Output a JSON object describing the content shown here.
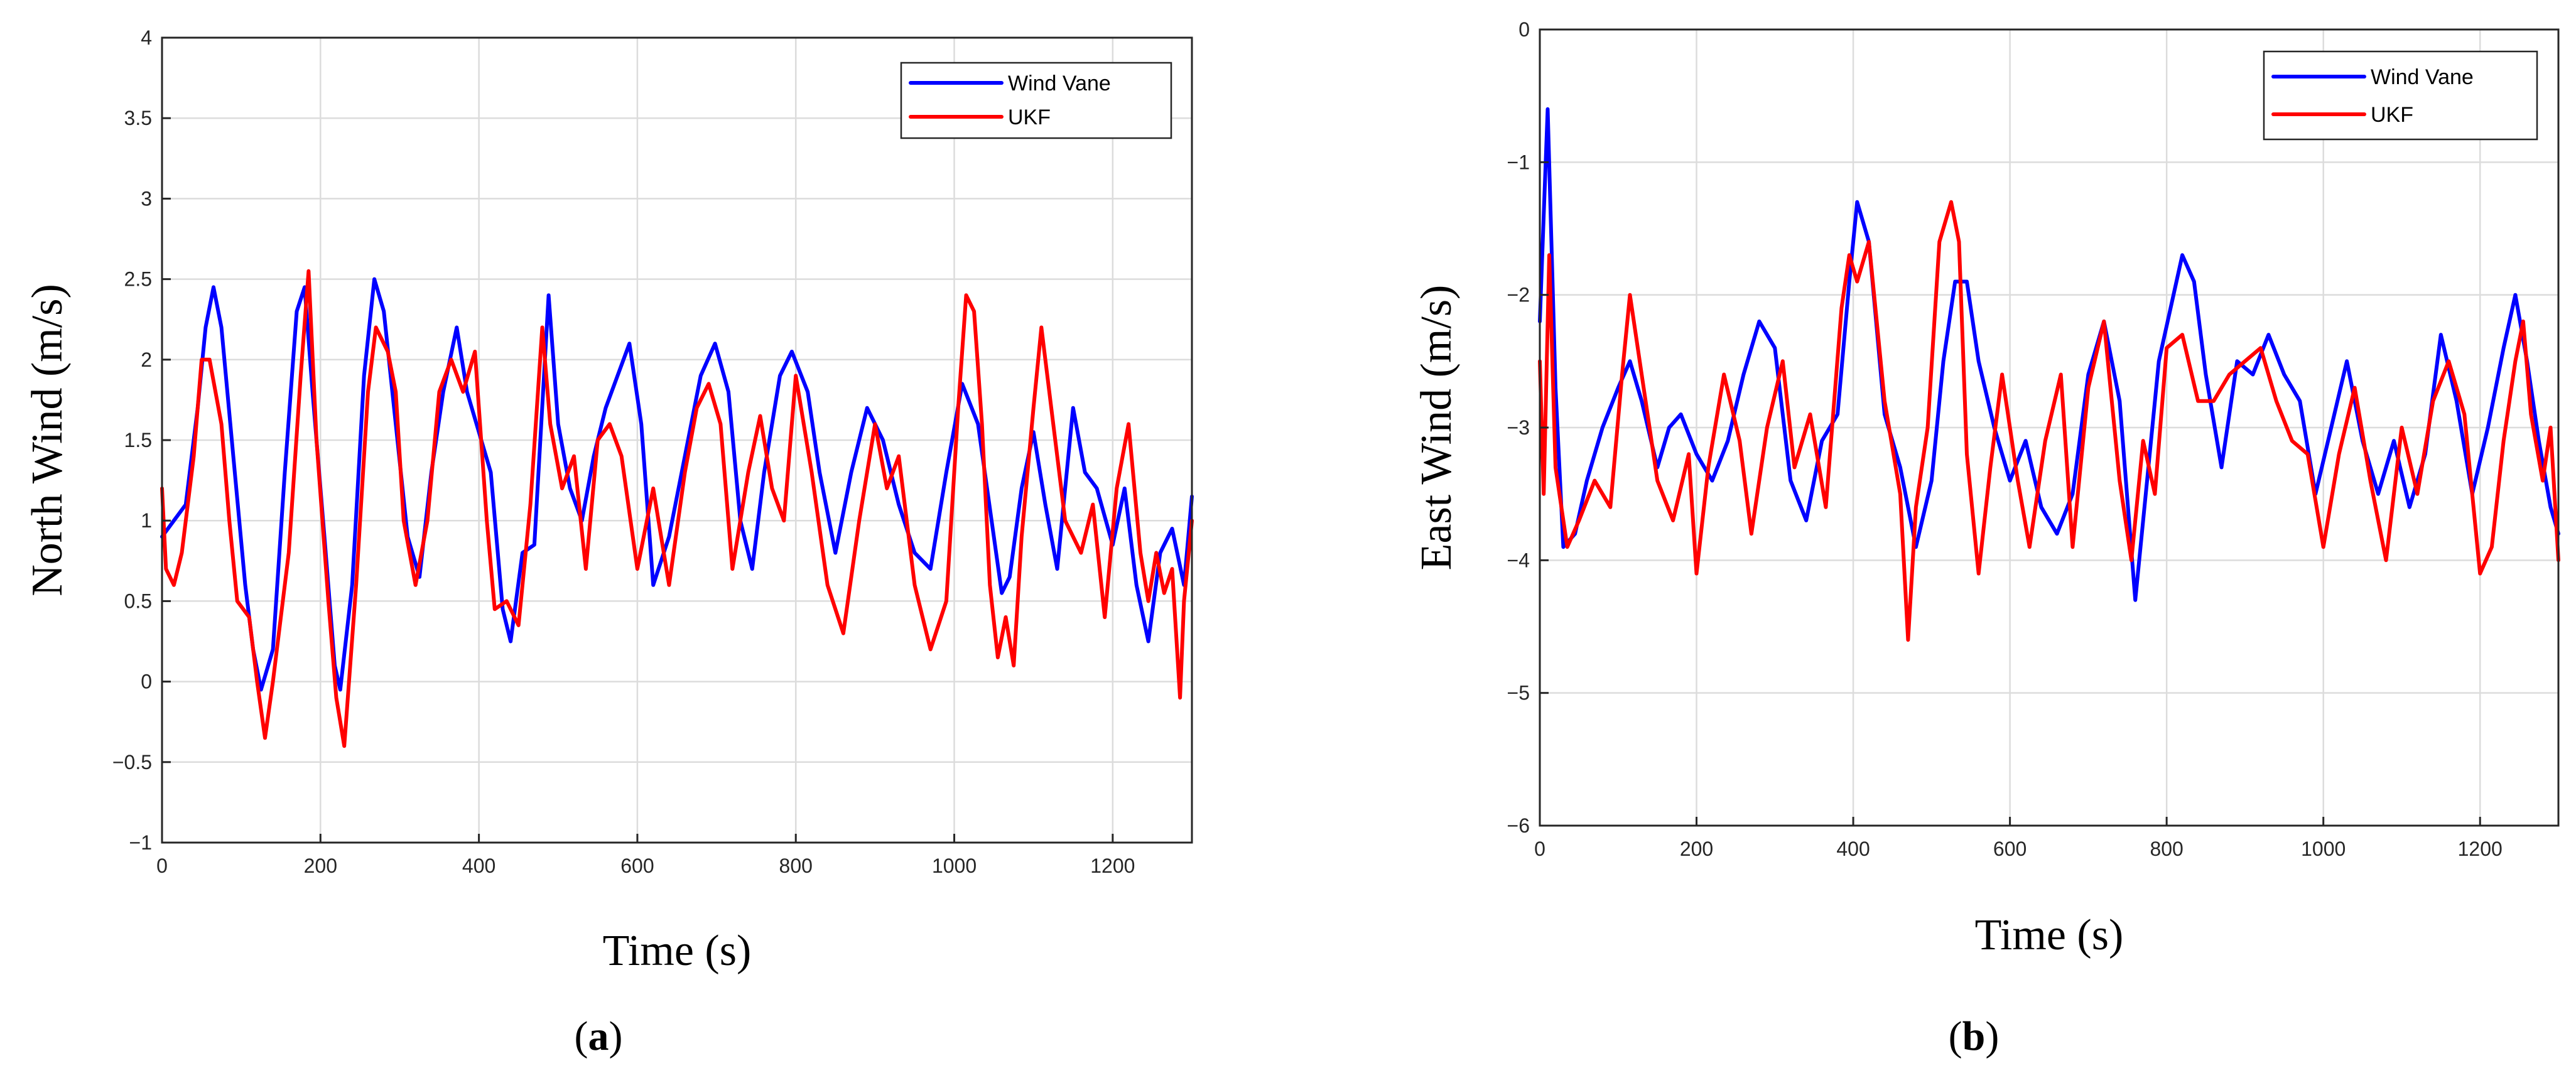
{
  "chart_data": [
    {
      "type": "line",
      "panel": "a",
      "caption_letter": "a",
      "xlabel": "Time (s)",
      "ylabel": "North Wind (m/s)",
      "xlim": [
        0,
        1300
      ],
      "ylim": [
        -1,
        4
      ],
      "xticks": [
        0,
        200,
        400,
        600,
        800,
        1000,
        1200
      ],
      "yticks": [
        -1,
        -0.5,
        0,
        0.5,
        1,
        1.5,
        2,
        2.5,
        3,
        3.5,
        4
      ],
      "grid": true,
      "legend_position": "top-right",
      "series": [
        {
          "name": "Wind Vane",
          "color": "#0000ff",
          "x": [
            0,
            15,
            30,
            45,
            55,
            65,
            75,
            90,
            105,
            115,
            125,
            140,
            155,
            170,
            180,
            190,
            205,
            218,
            225,
            240,
            255,
            268,
            280,
            295,
            310,
            325,
            340,
            355,
            372,
            385,
            400,
            415,
            430,
            440,
            455,
            470,
            488,
            500,
            515,
            530,
            545,
            560,
            575,
            590,
            605,
            620,
            640,
            660,
            680,
            698,
            715,
            730,
            745,
            760,
            780,
            795,
            815,
            830,
            850,
            870,
            890,
            910,
            930,
            950,
            970,
            990,
            1010,
            1030,
            1050,
            1060,
            1070,
            1085,
            1100,
            1115,
            1130,
            1150,
            1165,
            1180,
            1200,
            1215,
            1230,
            1245,
            1260,
            1275,
            1290,
            1300
          ],
          "y": [
            0.9,
            1.0,
            1.1,
            1.7,
            2.2,
            2.45,
            2.2,
            1.4,
            0.6,
            0.2,
            -0.05,
            0.2,
            1.3,
            2.3,
            2.45,
            1.8,
            0.9,
            0.1,
            -0.05,
            0.6,
            1.9,
            2.5,
            2.3,
            1.6,
            0.9,
            0.65,
            1.3,
            1.8,
            2.2,
            1.8,
            1.55,
            1.3,
            0.45,
            0.25,
            0.8,
            0.85,
            2.4,
            1.6,
            1.2,
            1.0,
            1.4,
            1.7,
            1.9,
            2.1,
            1.6,
            0.6,
            0.9,
            1.4,
            1.9,
            2.1,
            1.8,
            1.0,
            0.7,
            1.3,
            1.9,
            2.05,
            1.8,
            1.3,
            0.8,
            1.3,
            1.7,
            1.5,
            1.1,
            0.8,
            0.7,
            1.3,
            1.85,
            1.6,
            0.9,
            0.55,
            0.65,
            1.2,
            1.55,
            1.1,
            0.7,
            1.7,
            1.3,
            1.2,
            0.85,
            1.2,
            0.6,
            0.25,
            0.8,
            0.95,
            0.6,
            1.15
          ]
        },
        {
          "name": "UKF",
          "color": "#ff0000",
          "x": [
            0,
            5,
            15,
            25,
            40,
            50,
            60,
            75,
            85,
            95,
            110,
            120,
            130,
            140,
            160,
            175,
            185,
            195,
            210,
            220,
            230,
            245,
            260,
            270,
            285,
            295,
            305,
            320,
            335,
            350,
            365,
            380,
            395,
            410,
            420,
            435,
            450,
            465,
            480,
            490,
            505,
            520,
            535,
            550,
            565,
            580,
            600,
            620,
            640,
            660,
            675,
            690,
            705,
            720,
            740,
            755,
            770,
            785,
            800,
            820,
            840,
            860,
            880,
            900,
            915,
            930,
            950,
            970,
            990,
            1005,
            1015,
            1025,
            1035,
            1045,
            1055,
            1065,
            1075,
            1085,
            1100,
            1110,
            1125,
            1140,
            1160,
            1175,
            1190,
            1205,
            1220,
            1235,
            1245,
            1255,
            1265,
            1275,
            1285,
            1290,
            1300
          ],
          "y": [
            1.2,
            0.7,
            0.6,
            0.8,
            1.4,
            2.0,
            2.0,
            1.6,
            1.0,
            0.5,
            0.4,
            0.0,
            -0.35,
            0.0,
            0.8,
            1.9,
            2.55,
            1.5,
            0.5,
            -0.1,
            -0.4,
            0.6,
            1.8,
            2.2,
            2.05,
            1.8,
            1.0,
            0.6,
            1.0,
            1.8,
            2.0,
            1.8,
            2.05,
            1.0,
            0.45,
            0.5,
            0.35,
            1.1,
            2.2,
            1.6,
            1.2,
            1.4,
            0.7,
            1.5,
            1.6,
            1.4,
            0.7,
            1.2,
            0.6,
            1.3,
            1.7,
            1.85,
            1.6,
            0.7,
            1.3,
            1.65,
            1.2,
            1.0,
            1.9,
            1.3,
            0.6,
            0.3,
            1.0,
            1.6,
            1.2,
            1.4,
            0.6,
            0.2,
            0.5,
            1.7,
            2.4,
            2.3,
            1.6,
            0.6,
            0.15,
            0.4,
            0.1,
            0.9,
            1.7,
            2.2,
            1.6,
            1.0,
            0.8,
            1.1,
            0.4,
            1.2,
            1.6,
            0.8,
            0.5,
            0.8,
            0.55,
            0.7,
            -0.1,
            0.5,
            1.0
          ]
        }
      ]
    },
    {
      "type": "line",
      "panel": "b",
      "caption_letter": "b",
      "xlabel": "Time (s)",
      "ylabel": "East Wind (m/s)",
      "xlim": [
        0,
        1300
      ],
      "ylim": [
        -6,
        0
      ],
      "xticks": [
        0,
        200,
        400,
        600,
        800,
        1000,
        1200
      ],
      "yticks": [
        -6,
        -5,
        -4,
        -3,
        -2,
        -1,
        0
      ],
      "grid": true,
      "legend_position": "top-right",
      "series": [
        {
          "name": "Wind Vane",
          "color": "#0000ff",
          "x": [
            0,
            5,
            10,
            20,
            30,
            45,
            60,
            80,
            100,
            115,
            130,
            150,
            165,
            180,
            200,
            220,
            240,
            260,
            280,
            300,
            320,
            340,
            360,
            380,
            395,
            405,
            420,
            440,
            460,
            480,
            500,
            515,
            530,
            545,
            560,
            580,
            600,
            620,
            640,
            660,
            680,
            700,
            720,
            740,
            760,
            775,
            790,
            805,
            820,
            835,
            850,
            870,
            890,
            910,
            930,
            950,
            970,
            990,
            1010,
            1030,
            1050,
            1070,
            1090,
            1110,
            1130,
            1150,
            1170,
            1190,
            1210,
            1230,
            1245,
            1260,
            1275,
            1290,
            1300
          ],
          "y": [
            -2.2,
            -1.4,
            -0.6,
            -2.7,
            -3.9,
            -3.8,
            -3.4,
            -3.0,
            -2.7,
            -2.5,
            -2.8,
            -3.3,
            -3.0,
            -2.9,
            -3.2,
            -3.4,
            -3.1,
            -2.6,
            -2.2,
            -2.4,
            -3.4,
            -3.7,
            -3.1,
            -2.9,
            -1.9,
            -1.3,
            -1.6,
            -2.9,
            -3.3,
            -3.9,
            -3.4,
            -2.5,
            -1.9,
            -1.9,
            -2.5,
            -3.0,
            -3.4,
            -3.1,
            -3.6,
            -3.8,
            -3.5,
            -2.6,
            -2.2,
            -2.8,
            -4.3,
            -3.4,
            -2.5,
            -2.1,
            -1.7,
            -1.9,
            -2.6,
            -3.3,
            -2.5,
            -2.6,
            -2.3,
            -2.6,
            -2.8,
            -3.5,
            -3.0,
            -2.5,
            -3.1,
            -3.5,
            -3.1,
            -3.6,
            -3.2,
            -2.3,
            -2.8,
            -3.5,
            -3.0,
            -2.4,
            -2.0,
            -2.5,
            -3.1,
            -3.6,
            -3.8
          ]
        },
        {
          "name": "UKF",
          "color": "#ff0000",
          "x": [
            0,
            5,
            12,
            20,
            35,
            50,
            70,
            90,
            105,
            115,
            130,
            150,
            170,
            190,
            200,
            215,
            235,
            255,
            270,
            290,
            310,
            325,
            345,
            365,
            385,
            395,
            405,
            420,
            440,
            460,
            470,
            480,
            495,
            510,
            525,
            535,
            545,
            560,
            575,
            590,
            610,
            625,
            645,
            665,
            680,
            700,
            720,
            740,
            755,
            770,
            785,
            800,
            820,
            840,
            860,
            880,
            900,
            920,
            940,
            960,
            980,
            1000,
            1020,
            1040,
            1060,
            1080,
            1100,
            1120,
            1140,
            1160,
            1180,
            1200,
            1215,
            1230,
            1245,
            1255,
            1265,
            1280,
            1290,
            1300
          ],
          "y": [
            -2.5,
            -3.5,
            -1.7,
            -3.3,
            -3.9,
            -3.7,
            -3.4,
            -3.6,
            -2.6,
            -2.0,
            -2.6,
            -3.4,
            -3.7,
            -3.2,
            -4.1,
            -3.3,
            -2.6,
            -3.1,
            -3.8,
            -3.0,
            -2.5,
            -3.3,
            -2.9,
            -3.6,
            -2.1,
            -1.7,
            -1.9,
            -1.6,
            -2.8,
            -3.5,
            -4.6,
            -3.6,
            -3.0,
            -1.6,
            -1.3,
            -1.6,
            -3.2,
            -4.1,
            -3.3,
            -2.6,
            -3.4,
            -3.9,
            -3.1,
            -2.6,
            -3.9,
            -2.7,
            -2.2,
            -3.4,
            -4.0,
            -3.1,
            -3.5,
            -2.4,
            -2.3,
            -2.8,
            -2.8,
            -2.6,
            -2.5,
            -2.4,
            -2.8,
            -3.1,
            -3.2,
            -3.9,
            -3.2,
            -2.7,
            -3.4,
            -4.0,
            -3.0,
            -3.5,
            -2.8,
            -2.5,
            -2.9,
            -4.1,
            -3.9,
            -3.1,
            -2.5,
            -2.2,
            -2.9,
            -3.4,
            -3.0,
            -4.0
          ]
        }
      ]
    }
  ]
}
